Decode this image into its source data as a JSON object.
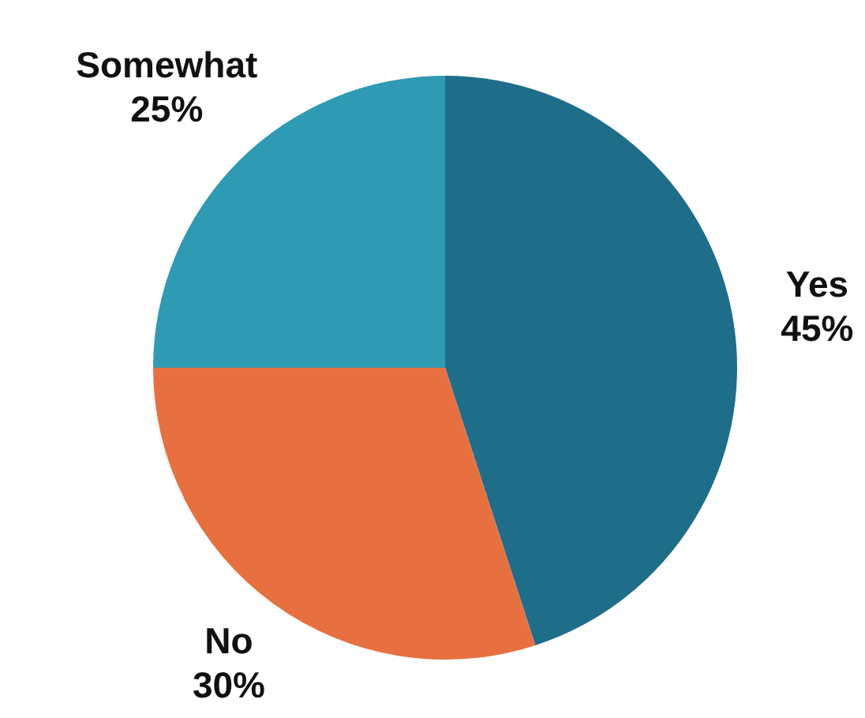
{
  "chart_data": {
    "type": "pie",
    "categories": [
      "Yes",
      "No",
      "Somewhat"
    ],
    "values": [
      45,
      30,
      25
    ],
    "colors": [
      "#1e6e8a",
      "#e87040",
      "#2e9ab3"
    ],
    "value_labels": [
      "45%",
      "30%",
      "25%"
    ],
    "legend": false
  }
}
